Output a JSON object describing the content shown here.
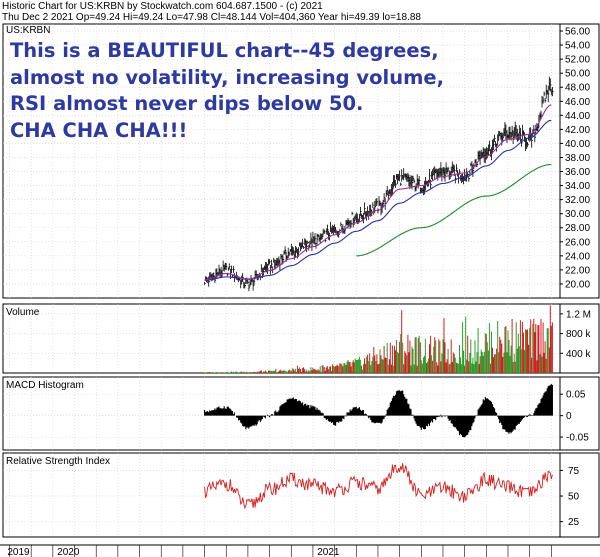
{
  "header": {
    "line1": "Historic Chart for US:KRBN by Stockwatch.com 604.687.1500 - (c) 2021",
    "line2": "Thu Dec  2 2021   Op=49.24   Hi=49.24   Lo=47.98   Cl=48.144   Vol=404,360   Year hi=49.39   lo=18.88"
  },
  "annotation": {
    "lines": [
      "This is a BEAUTIFUL chart--45 degrees,",
      "almost no volatility, increasing volume,",
      "RSI almost never dips below 50.",
      "CHA CHA CHA!!!"
    ]
  },
  "colors": {
    "price_bar": "#000000",
    "ma_short": "#9b2f9b",
    "ma_medium": "#2b2fa8",
    "ma_long": "#1f8a2a",
    "volume_up": "#2aa02a",
    "volume_down": "#d42020",
    "rsi_line": "#d42020",
    "text_annotation": "#2e3a9e"
  },
  "chart_data": [
    {
      "type": "line",
      "panel": "price",
      "title": "US:KRBN",
      "x_range": [
        "2020-08",
        "2021-12"
      ],
      "ylim": [
        18,
        57
      ],
      "yticks": [
        20,
        22,
        24,
        26,
        28,
        30,
        32,
        34,
        36,
        38,
        40,
        42,
        44,
        46,
        48,
        50,
        52,
        54,
        56
      ],
      "grid": true,
      "series": [
        {
          "style": "bars",
          "x": [
            "2020-08",
            "2020-09",
            "2020-10",
            "2020-11",
            "2020-12",
            "2021-01",
            "2021-02",
            "2021-03",
            "2021-04",
            "2021-05",
            "2021-06",
            "2021-07",
            "2021-08",
            "2021-09",
            "2021-10",
            "2021-11",
            "2021-12"
          ],
          "values": [
            20.5,
            22.0,
            20.0,
            22.5,
            24.5,
            26.0,
            27.5,
            29.5,
            31.0,
            35.0,
            34.0,
            36.0,
            35.5,
            39.0,
            41.5,
            40.5,
            48.1
          ]
        },
        {
          "style": "ma_short",
          "x": [
            "2020-08",
            "2020-09",
            "2020-10",
            "2020-11",
            "2020-12",
            "2021-01",
            "2021-02",
            "2021-03",
            "2021-04",
            "2021-05",
            "2021-06",
            "2021-07",
            "2021-08",
            "2021-09",
            "2021-10",
            "2021-11",
            "2021-12"
          ],
          "values": [
            20.6,
            21.5,
            20.6,
            21.9,
            23.6,
            25.3,
            27.0,
            28.7,
            30.5,
            33.5,
            34.0,
            35.3,
            35.8,
            38.2,
            40.6,
            41.3,
            45.5
          ]
        },
        {
          "style": "ma_medium",
          "x": [
            "2020-08",
            "2020-09",
            "2020-10",
            "2020-11",
            "2020-12",
            "2021-01",
            "2021-02",
            "2021-03",
            "2021-04",
            "2021-05",
            "2021-06",
            "2021-07",
            "2021-08",
            "2021-09",
            "2021-10",
            "2021-11",
            "2021-12"
          ],
          "values": [
            20.5,
            21.0,
            20.7,
            21.2,
            22.6,
            24.2,
            25.8,
            27.5,
            29.0,
            31.5,
            33.0,
            34.3,
            35.2,
            36.8,
            39.0,
            40.8,
            43.3
          ]
        },
        {
          "style": "ma_long",
          "x": [
            "2021-03",
            "2021-06",
            "2021-09",
            "2021-12"
          ],
          "values": [
            24.0,
            28.0,
            32.5,
            37.0
          ]
        }
      ]
    },
    {
      "type": "bar",
      "panel": "volume",
      "title": "Volume",
      "x_range": [
        "2020-08",
        "2021-12"
      ],
      "ylim": [
        0,
        1400000
      ],
      "yticks_labels": [
        "400 k",
        "800 k",
        "1.2 M"
      ],
      "x": [
        "2020-08",
        "2020-09",
        "2020-10",
        "2020-11",
        "2020-12",
        "2021-01",
        "2021-02",
        "2021-03",
        "2021-04",
        "2021-05",
        "2021-06",
        "2021-07",
        "2021-08",
        "2021-09",
        "2021-10",
        "2021-11",
        "2021-12"
      ],
      "values": [
        15000,
        20000,
        25000,
        35000,
        60000,
        90000,
        130000,
        220000,
        380000,
        600000,
        550000,
        480000,
        520000,
        700000,
        800000,
        760000,
        900000
      ]
    },
    {
      "type": "area",
      "panel": "macd",
      "title": "MACD Histogram",
      "x_range": [
        "2020-08",
        "2021-12"
      ],
      "ylim": [
        -0.08,
        0.09
      ],
      "yticks": [
        0.05,
        0,
        -0.05
      ],
      "yticks_labels": [
        "0.05",
        "0",
        "-0.05"
      ],
      "x": [
        "2020-08",
        "2020-09",
        "2020-10",
        "2020-11",
        "2020-12",
        "2021-01",
        "2021-02",
        "2021-03",
        "2021-04",
        "2021-05",
        "2021-06",
        "2021-07",
        "2021-08",
        "2021-09",
        "2021-10",
        "2021-11",
        "2021-12"
      ],
      "values": [
        0.01,
        0.02,
        -0.03,
        0.0,
        0.04,
        0.02,
        -0.02,
        0.02,
        -0.02,
        0.06,
        -0.03,
        0.0,
        -0.05,
        0.04,
        -0.04,
        0.0,
        0.07
      ]
    },
    {
      "type": "line",
      "panel": "rsi",
      "title": "Relative Strength Index",
      "x_range": [
        "2020-08",
        "2021-12"
      ],
      "ylim": [
        10,
        92
      ],
      "yticks": [
        25,
        50,
        75
      ],
      "x": [
        "2020-08",
        "2020-09",
        "2020-10",
        "2020-11",
        "2020-12",
        "2021-01",
        "2021-02",
        "2021-03",
        "2021-04",
        "2021-05",
        "2021-06",
        "2021-07",
        "2021-08",
        "2021-09",
        "2021-10",
        "2021-11",
        "2021-12"
      ],
      "values": [
        55,
        62,
        40,
        56,
        66,
        60,
        55,
        63,
        57,
        80,
        50,
        58,
        50,
        66,
        58,
        52,
        72
      ]
    }
  ],
  "x_axis": {
    "labels": [
      "2019",
      "2020",
      "2021"
    ]
  }
}
